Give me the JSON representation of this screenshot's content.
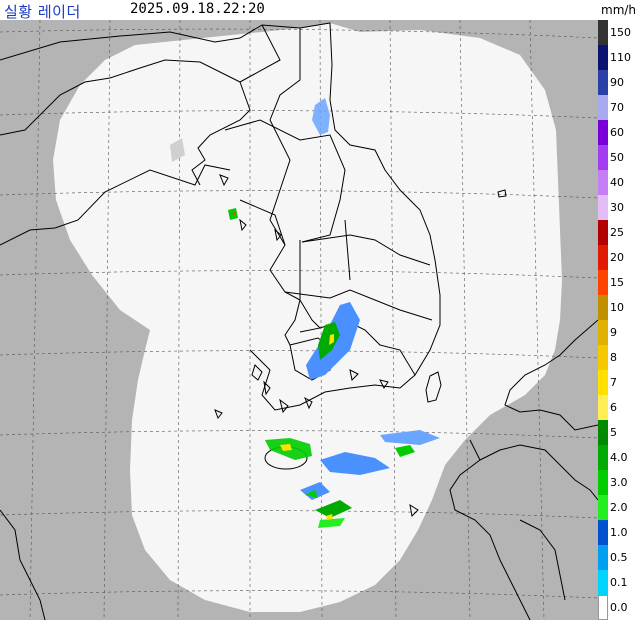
{
  "header": {
    "title": "실황 레이더",
    "timestamp": "2025.09.18.22:20",
    "unit": "mm/h"
  },
  "legend": {
    "levels": [
      {
        "label": "150",
        "color": "#333333"
      },
      {
        "label": "110",
        "color": "#0a1470"
      },
      {
        "label": "90",
        "color": "#2b3fa8"
      },
      {
        "label": "70",
        "color": "#a9a9f0"
      },
      {
        "label": "60",
        "color": "#7a00d9"
      },
      {
        "label": "50",
        "color": "#a43cf0"
      },
      {
        "label": "40",
        "color": "#c57df5"
      },
      {
        "label": "30",
        "color": "#e4bcf7"
      },
      {
        "label": "25",
        "color": "#b30000"
      },
      {
        "label": "20",
        "color": "#e01b00"
      },
      {
        "label": "15",
        "color": "#ff4400"
      },
      {
        "label": "10",
        "color": "#c09000"
      },
      {
        "label": "9",
        "color": "#e0b000"
      },
      {
        "label": "8",
        "color": "#f5c800"
      },
      {
        "label": "7",
        "color": "#ffe000"
      },
      {
        "label": "6",
        "color": "#ffee55"
      },
      {
        "label": "5",
        "color": "#008a00"
      },
      {
        "label": "4.0",
        "color": "#00aa00"
      },
      {
        "label": "3.0",
        "color": "#00cc00"
      },
      {
        "label": "2.0",
        "color": "#22ee22"
      },
      {
        "label": "1.0",
        "color": "#0050d0"
      },
      {
        "label": "0.5",
        "color": "#00a0f0"
      },
      {
        "label": "0.1",
        "color": "#00d5ff"
      },
      {
        "label": "0.0",
        "color": "#ffffff"
      }
    ]
  },
  "colors": {
    "outside": "#b4b4b4",
    "coverage": "#f6f6f6",
    "coastline": "#000000",
    "grid": "#555555"
  }
}
